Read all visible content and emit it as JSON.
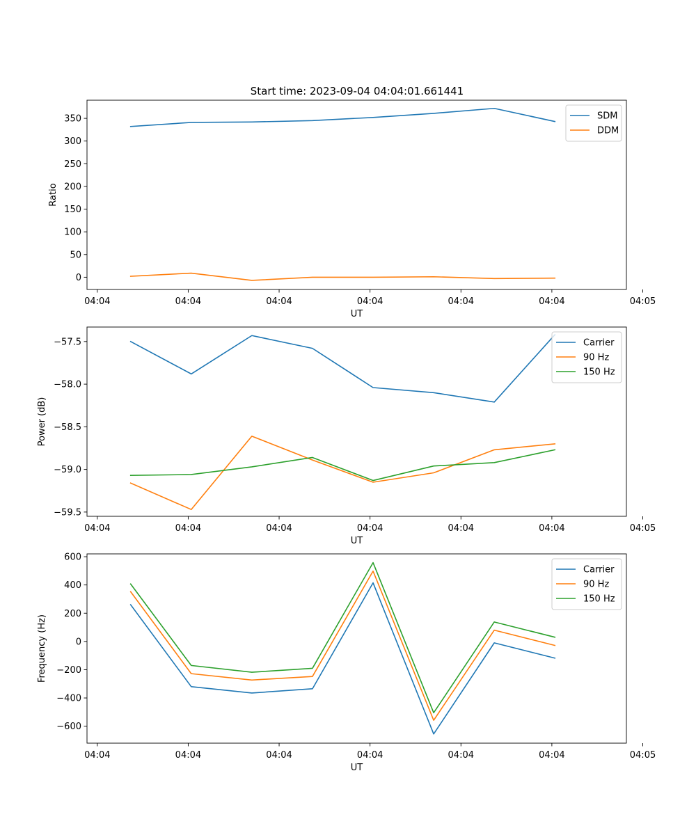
{
  "figure_title": "Start time: 2023-09-04 04:04:01.661441",
  "chart_data": [
    {
      "type": "line",
      "title": "Start time: 2023-09-04 04:04:01.661441",
      "xlabel": "UT",
      "ylabel": "Ratio",
      "x": [
        1,
        2,
        3,
        4,
        5,
        6,
        7,
        8
      ],
      "xlim": [
        0.28,
        9.18
      ],
      "x_ticks": [
        0.45,
        1.95,
        3.45,
        4.95,
        6.45,
        7.95,
        9.45
      ],
      "x_tick_labels": [
        "04:04",
        "04:04",
        "04:04",
        "04:04",
        "04:04",
        "04:04",
        "04:05"
      ],
      "ylim": [
        -27,
        390
      ],
      "y_ticks": [
        0,
        50,
        100,
        150,
        200,
        250,
        300,
        350
      ],
      "y_tick_labels": [
        "0",
        "50",
        "100",
        "150",
        "200",
        "250",
        "300",
        "350"
      ],
      "legend_position": "top-right",
      "series": [
        {
          "name": "SDM",
          "color": "#1f77b4",
          "values": [
            332,
            341,
            342,
            345,
            352,
            361,
            372,
            343
          ]
        },
        {
          "name": "DDM",
          "color": "#ff7f0e",
          "values": [
            2,
            9,
            -7,
            0,
            0,
            1,
            -3,
            -2
          ]
        }
      ]
    },
    {
      "type": "line",
      "title": "",
      "xlabel": "UT",
      "ylabel": "Power (dB)",
      "x": [
        1,
        2,
        3,
        4,
        5,
        6,
        7,
        8
      ],
      "xlim": [
        0.28,
        9.18
      ],
      "x_ticks": [
        0.45,
        1.95,
        3.45,
        4.95,
        6.45,
        7.95,
        9.45
      ],
      "x_tick_labels": [
        "04:04",
        "04:04",
        "04:04",
        "04:04",
        "04:04",
        "04:04",
        "04:05"
      ],
      "ylim": [
        -59.55,
        -57.33
      ],
      "y_ticks": [
        -59.5,
        -59.0,
        -58.5,
        -58.0,
        -57.5
      ],
      "y_tick_labels": [
        "−59.5",
        "−59.0",
        "−58.5",
        "−58.0",
        "−57.5"
      ],
      "legend_position": "top-right",
      "series": [
        {
          "name": "Carrier",
          "color": "#1f77b4",
          "values": [
            -57.5,
            -57.88,
            -57.43,
            -57.58,
            -58.04,
            -58.1,
            -58.21,
            -57.42
          ]
        },
        {
          "name": "90 Hz",
          "color": "#ff7f0e",
          "values": [
            -59.16,
            -59.47,
            -58.61,
            -58.89,
            -59.15,
            -59.04,
            -58.77,
            -58.7
          ]
        },
        {
          "name": "150 Hz",
          "color": "#2ca02c",
          "values": [
            -59.07,
            -59.06,
            -58.97,
            -58.86,
            -59.13,
            -58.96,
            -58.92,
            -58.77
          ]
        }
      ]
    },
    {
      "type": "line",
      "title": "",
      "xlabel": "UT",
      "ylabel": "Frequency (Hz)",
      "x": [
        1,
        2,
        3,
        4,
        5,
        6,
        7,
        8
      ],
      "xlim": [
        0.28,
        9.18
      ],
      "x_ticks": [
        0.45,
        1.95,
        3.45,
        4.95,
        6.45,
        7.95,
        9.45
      ],
      "x_tick_labels": [
        "04:04",
        "04:04",
        "04:04",
        "04:04",
        "04:04",
        "04:04",
        "04:05"
      ],
      "ylim": [
        -720,
        620
      ],
      "y_ticks": [
        -600,
        -400,
        -200,
        0,
        200,
        400,
        600
      ],
      "y_tick_labels": [
        "−600",
        "−400",
        "−200",
        "0",
        "200",
        "400",
        "600"
      ],
      "legend_position": "top-right",
      "series": [
        {
          "name": "Carrier",
          "color": "#1f77b4",
          "values": [
            260,
            -320,
            -365,
            -335,
            415,
            -655,
            -10,
            -118
          ]
        },
        {
          "name": "90 Hz",
          "color": "#ff7f0e",
          "values": [
            352,
            -228,
            -273,
            -248,
            498,
            -558,
            80,
            -28
          ]
        },
        {
          "name": "150 Hz",
          "color": "#2ca02c",
          "values": [
            407,
            -170,
            -218,
            -190,
            558,
            -505,
            138,
            30
          ]
        }
      ]
    }
  ]
}
